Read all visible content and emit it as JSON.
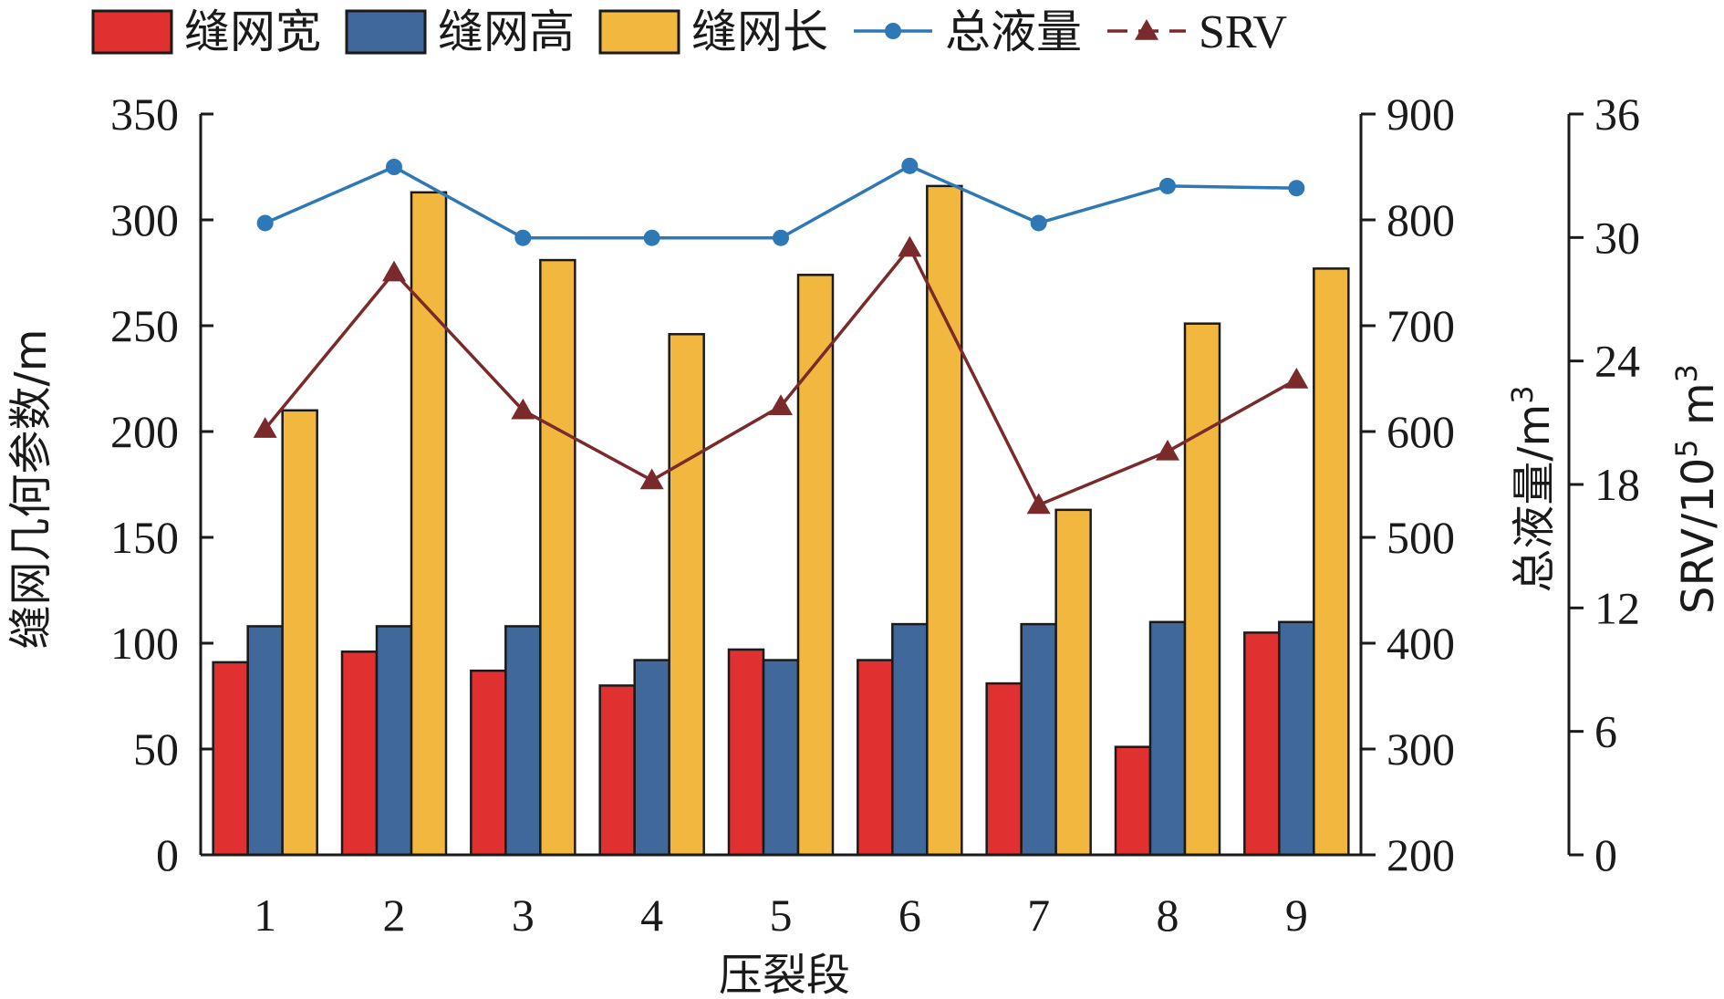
{
  "chart_data": {
    "type": "bar",
    "xlabel": "压裂段",
    "categories": [
      "1",
      "2",
      "3",
      "4",
      "5",
      "6",
      "7",
      "8",
      "9"
    ],
    "series": [
      {
        "name": "缝网宽",
        "kind": "bar",
        "axis": "y1",
        "color": "#e03030",
        "values": [
          91,
          96,
          87,
          80,
          97,
          92,
          81,
          51,
          105
        ]
      },
      {
        "name": "缝网高",
        "kind": "bar",
        "axis": "y1",
        "color": "#41689b",
        "values": [
          108,
          108,
          108,
          92,
          92,
          109,
          109,
          110,
          110
        ]
      },
      {
        "name": "缝网长",
        "kind": "bar",
        "axis": "y1",
        "color": "#f2b73e",
        "values": [
          210,
          313,
          281,
          246,
          274,
          316,
          163,
          251,
          277
        ]
      },
      {
        "name": "总液量",
        "kind": "line",
        "axis": "y2",
        "color": "#2e78b5",
        "marker": "circle",
        "values": [
          797,
          850,
          783,
          783,
          783,
          851,
          797,
          832,
          830
        ]
      },
      {
        "name": "SRV",
        "kind": "line",
        "axis": "y3",
        "color": "#7a2a2a",
        "marker": "triangle",
        "dashed_legend": true,
        "values": [
          20.7,
          28.3,
          21.6,
          18.2,
          21.8,
          29.5,
          17.0,
          19.6,
          23.1
        ]
      }
    ],
    "axes": {
      "y1": {
        "label": "缝网几何参数/m",
        "min": 0,
        "max": 350,
        "ticks": [
          0,
          50,
          100,
          150,
          200,
          250,
          300,
          350
        ]
      },
      "y2": {
        "label_main": "总液量/m",
        "label_sup": "3",
        "min": 200,
        "max": 900,
        "ticks": [
          200,
          300,
          400,
          500,
          600,
          700,
          800,
          900
        ]
      },
      "y3": {
        "label_main": "SRV/10",
        "label_sup1": "5",
        "label_mid": " m",
        "label_sup2": "3",
        "min": 0,
        "max": 36,
        "ticks": [
          0,
          6,
          12,
          18,
          24,
          30,
          36
        ]
      }
    },
    "legend_position": "top",
    "grid": false
  }
}
